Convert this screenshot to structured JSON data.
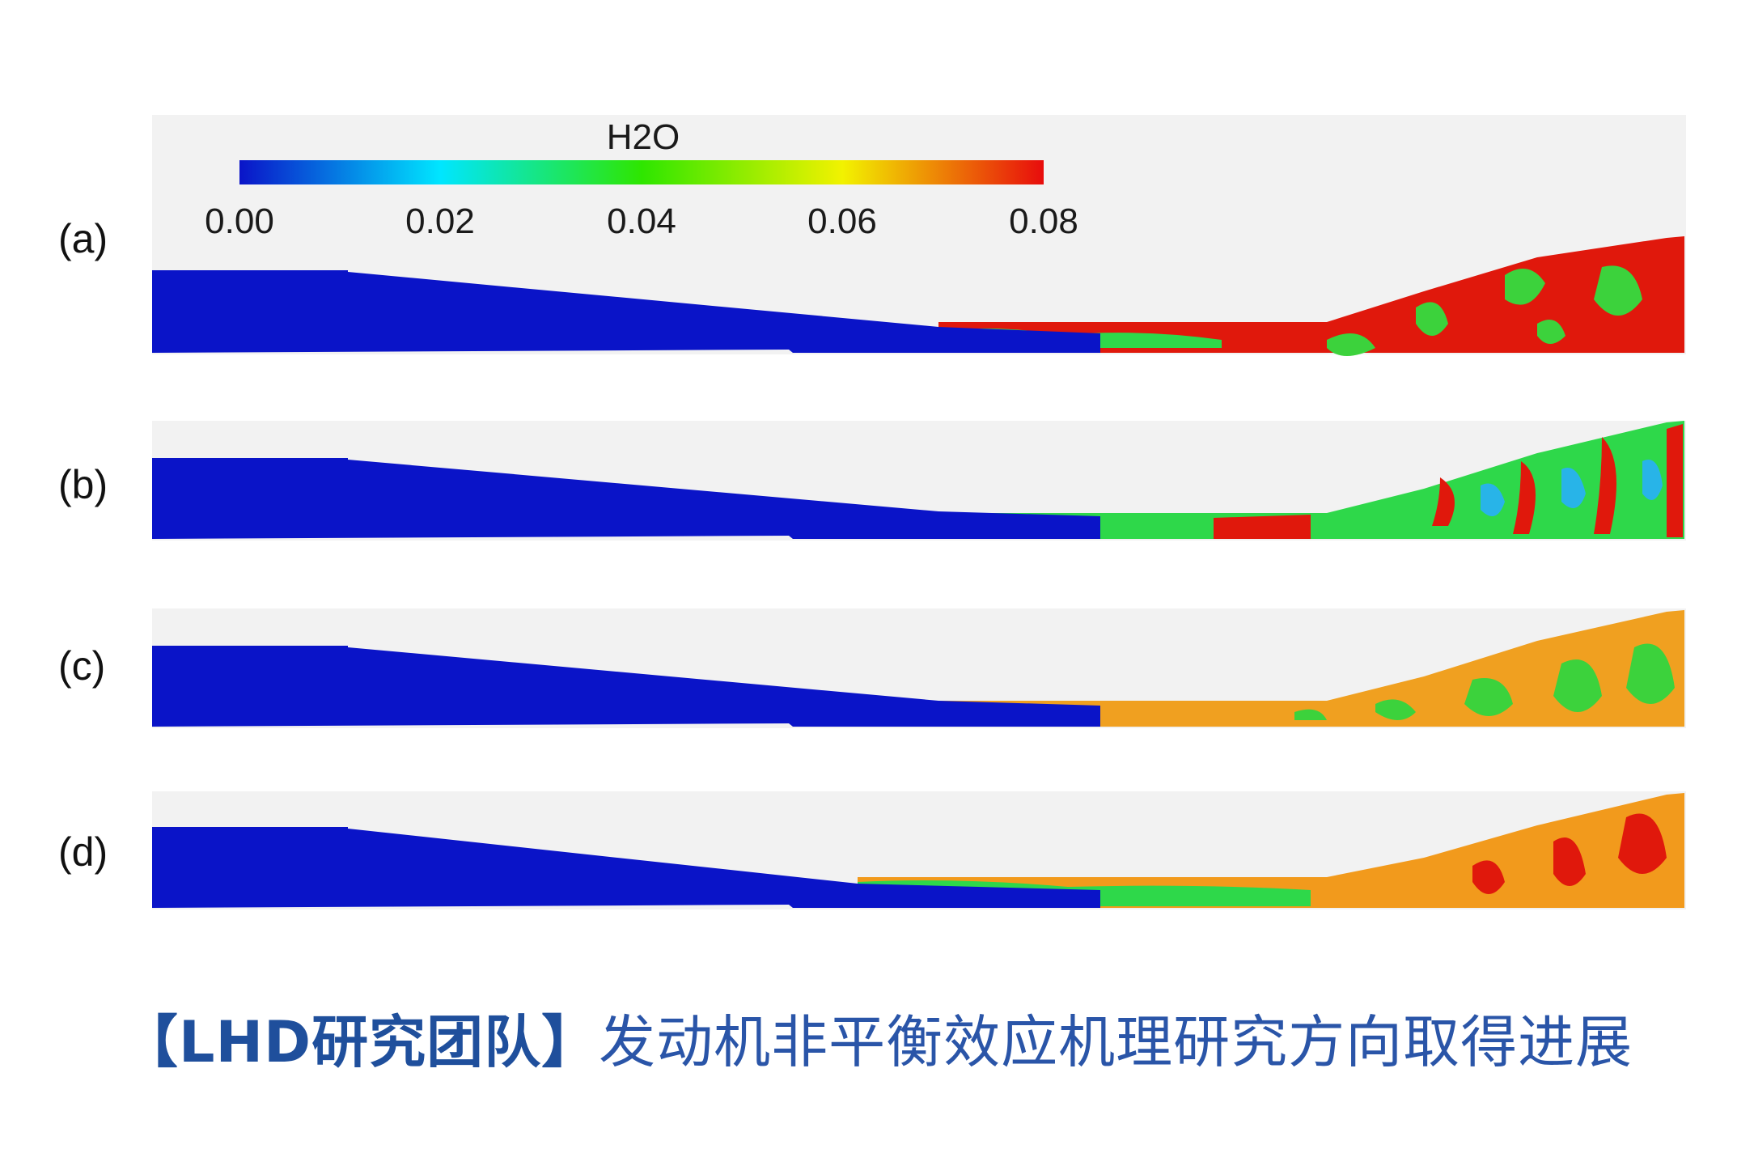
{
  "colorbar": {
    "title": "H2O",
    "ticks": [
      "0.00",
      "0.02",
      "0.04",
      "0.06",
      "0.08"
    ],
    "range": [
      0.0,
      0.08
    ],
    "colormap": [
      "#0a14c8",
      "#00e6ff",
      "#2ee600",
      "#f2f200",
      "#e80c0c"
    ]
  },
  "panels": [
    {
      "label": "(a)",
      "background": "#f2f2f2",
      "core": "#0a14c8",
      "downstream": "#e0180c",
      "accent": "#3cd23c"
    },
    {
      "label": "(b)",
      "background": "#f2f2f2",
      "core": "#0a14c8",
      "downstream": "#2ed84a",
      "accent": "#e0180c"
    },
    {
      "label": "(c)",
      "background": "#f2f2f2",
      "core": "#0a14c8",
      "downstream": "#f0a020",
      "accent": "#3cd23c"
    },
    {
      "label": "(d)",
      "background": "#f2f2f2",
      "core": "#0a14c8",
      "downstream": "#f29a1c",
      "accent": "#e0180c"
    }
  ],
  "headline": {
    "tag": "【LHD研究团队】",
    "text": "发动机非平衡效应机理研究方向取得进展"
  }
}
